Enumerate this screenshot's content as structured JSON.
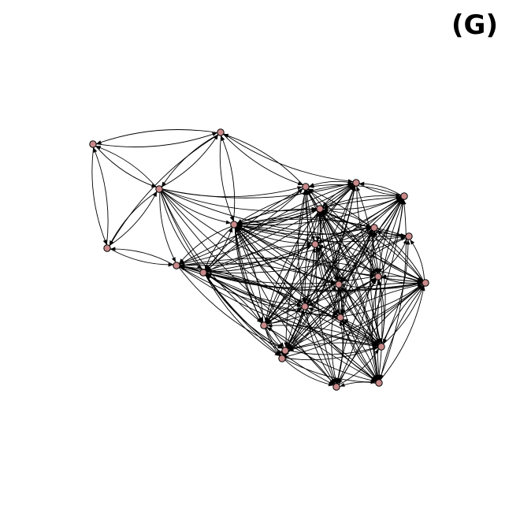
{
  "figure": {
    "panel_label": "(G)",
    "node_color": "#c98a8a",
    "edge_color": "#000000",
    "graph_type": "directed network"
  }
}
